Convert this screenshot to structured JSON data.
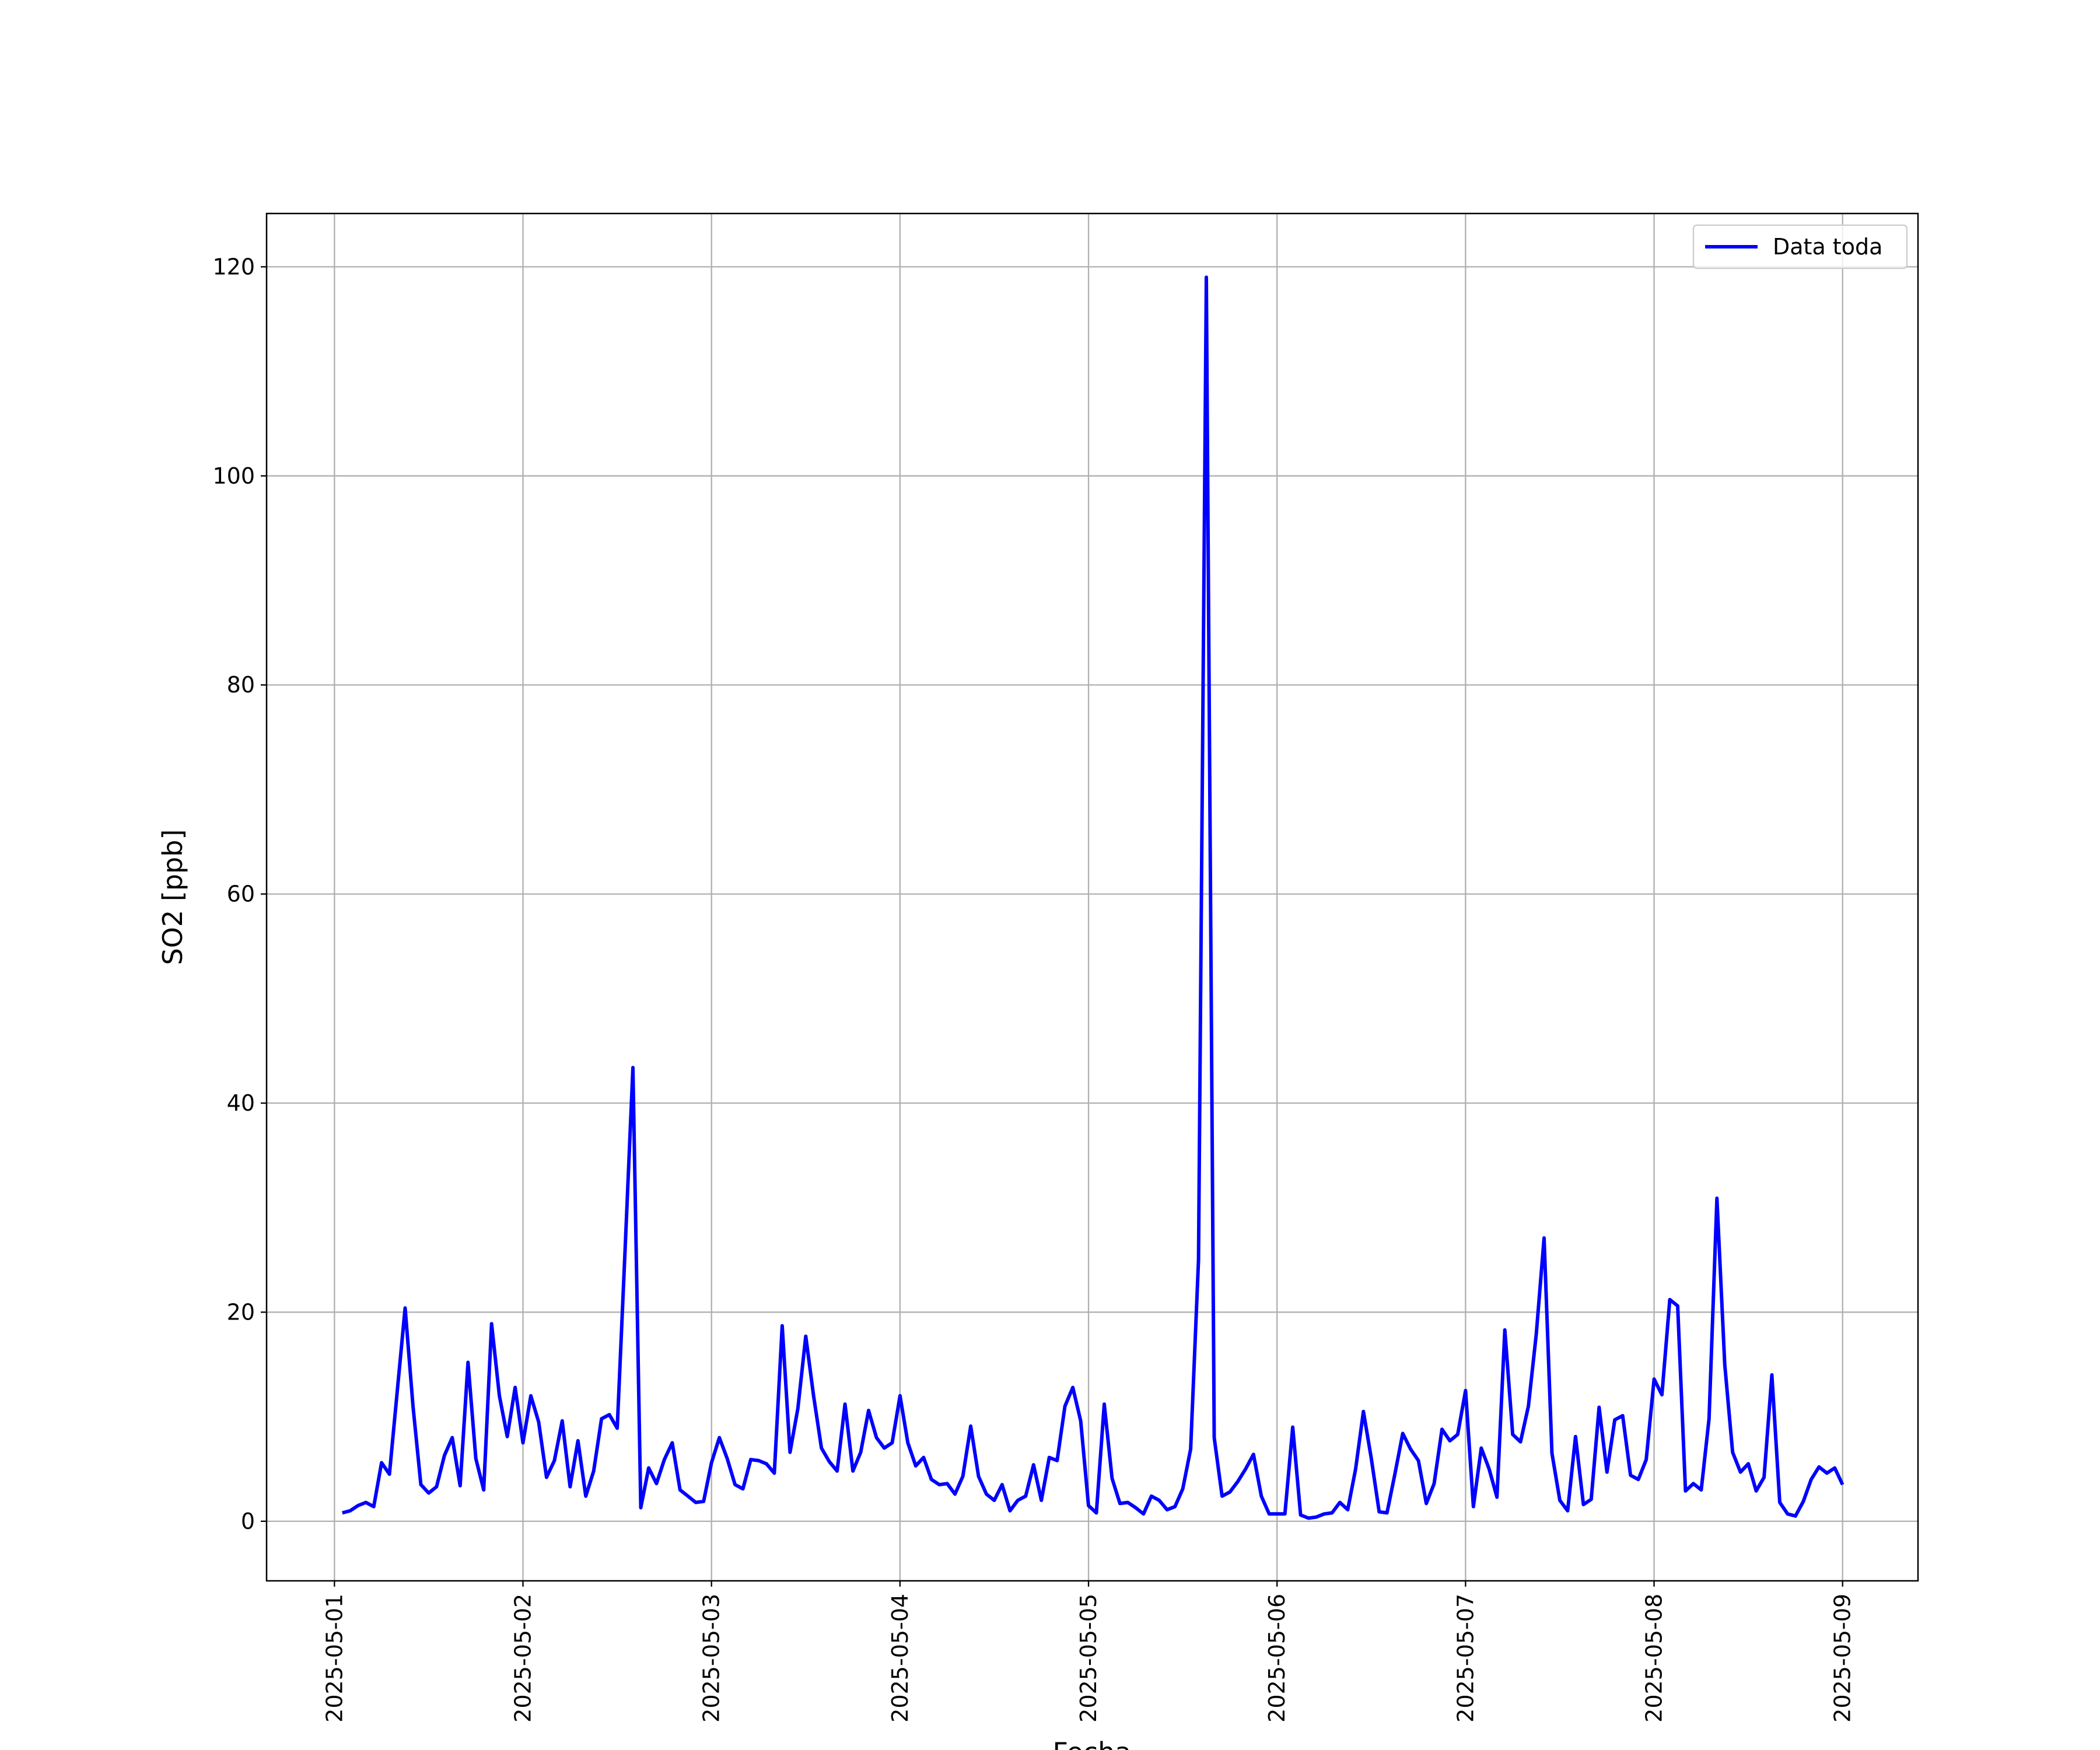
{
  "chart_data": {
    "type": "line",
    "x_label": "Fecha",
    "y_label": "SO2 [ppb]",
    "xticks": [
      "2025-05-01",
      "2025-05-02",
      "2025-05-03",
      "2025-05-04",
      "2025-05-05",
      "2025-05-06",
      "2025-05-07",
      "2025-05-08",
      "2025-05-09"
    ],
    "ylim": [
      -5.7,
      125.1
    ],
    "yticks": [
      0,
      20,
      40,
      60,
      80,
      100,
      120
    ],
    "grid": true,
    "legend_position": "upper-right",
    "series": [
      {
        "name": "Data toda",
        "color": "#0000ff",
        "values": [
          0.8,
          1.0,
          1.5,
          1.8,
          1.4,
          5.6,
          4.5,
          12.5,
          20.4,
          11,
          3.5,
          2.7,
          3.3,
          6.3,
          8.0,
          3.4,
          15.2,
          6,
          3,
          18.9,
          12,
          8.1,
          12.8,
          7.5,
          12,
          9.5,
          4.2,
          5.8,
          9.6,
          3.3,
          7.7,
          2.4,
          4.8,
          9.8,
          10.2,
          8.9,
          26,
          43.4,
          1.3,
          5.1,
          3.6,
          5.9,
          7.5,
          3,
          2.4,
          1.8,
          1.9,
          5.6,
          8,
          6,
          3.5,
          3.1,
          5.9,
          5.8,
          5.5,
          4.6,
          18.7,
          6.6,
          10.8,
          17.7,
          12,
          7,
          5.7,
          4.8,
          11.2,
          4.8,
          6.6,
          10.6,
          8,
          7,
          7.5,
          12,
          7.5,
          5.3,
          6.1,
          4,
          3.5,
          3.6,
          2.6,
          4.3,
          9.1,
          4.3,
          2.6,
          2,
          3.5,
          1,
          2,
          2.4,
          5.4,
          2,
          6.1,
          5.8,
          11,
          12.8,
          9.6,
          1.5,
          0.8,
          11.2,
          4.1,
          1.7,
          1.8,
          1.3,
          0.7,
          2.4,
          2,
          1.1,
          1.4,
          3.1,
          6.9,
          25,
          119,
          8,
          2.4,
          2.8,
          3.8,
          5,
          6.4,
          2.4,
          0.7,
          0.7,
          0.7,
          9,
          0.6,
          0.3,
          0.4,
          0.7,
          0.8,
          1.8,
          1.1,
          5,
          10.5,
          6,
          0.9,
          0.8,
          4.5,
          8.4,
          6.9,
          5.8,
          1.7,
          3.6,
          8.8,
          7.7,
          8.3,
          12.5,
          1.4,
          7,
          5,
          2.3,
          18.3,
          8.3,
          7.6,
          11,
          17.9,
          27.1,
          6.5,
          2,
          1,
          8.1,
          1.6,
          2.1,
          10.9,
          4.7,
          9.7,
          10.1,
          4.4,
          4,
          5.9,
          13.6,
          12.1,
          21.2,
          20.6,
          2.9,
          3.6,
          3,
          9.8,
          30.9,
          15,
          6.6,
          4.7,
          5.5,
          2.9,
          4.2,
          14,
          1.8,
          0.7,
          0.5,
          1.9,
          4,
          5.2,
          4.6,
          5.1,
          3.5
        ]
      }
    ]
  }
}
